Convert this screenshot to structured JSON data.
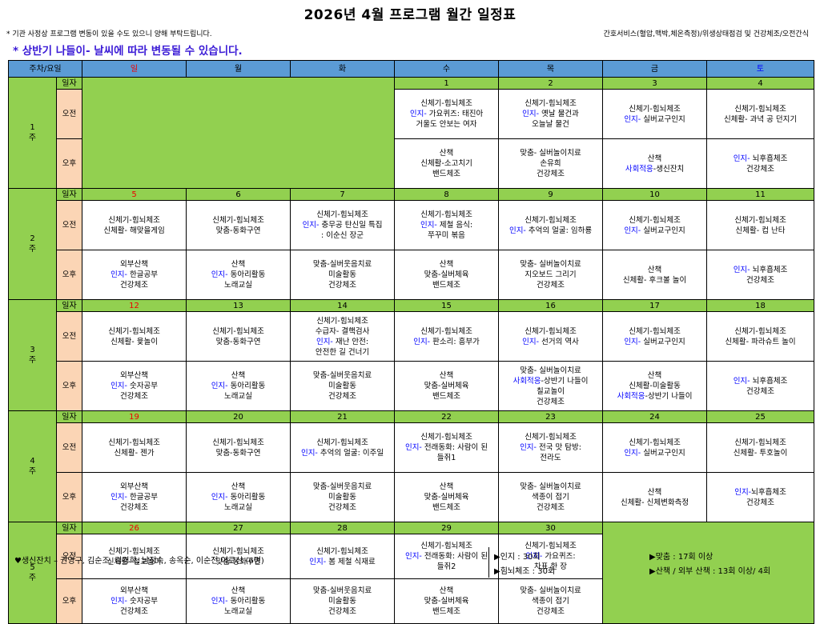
{
  "title": "2026년 4월 프로그램 월간 일정표",
  "note_left": "* 기관 사정상 프로그램 변동이 있을 수도 있으니 양해 부탁드립니다.",
  "note_right": "간호서비스(혈압,맥박,체온측정)/위생상태점검 및 건강체조/오전간식",
  "weather_note": "* 상반기 나들이- 날씨에 따라 변동될 수 있습니다.",
  "header": {
    "week_day": "주차/요일",
    "days": [
      "일",
      "월",
      "화",
      "수",
      "목",
      "금",
      "토"
    ]
  },
  "row_labels": {
    "date": "일자",
    "am": "오전",
    "pm": "오후"
  },
  "weeks": [
    {
      "label": "1\n주",
      "dates": [
        "",
        "",
        "",
        "1",
        "2",
        "3",
        "4"
      ],
      "am": [
        null,
        null,
        null,
        [
          [
            "신체기-힘뇌체조"
          ],
          [
            [
              "인지-",
              "b"
            ],
            [
              "  가요퀴즈: 태진아",
              ""
            ]
          ],
          [
            "거울도 안보는 여자"
          ]
        ],
        [
          [
            "신체기-힘뇌체조"
          ],
          [
            [
              "인지-",
              "b"
            ],
            [
              "  옛날 물건과",
              ""
            ]
          ],
          [
            "오늘날 물건"
          ]
        ],
        [
          [
            "신체기-힘뇌체조"
          ],
          [
            [
              "인지-",
              "b"
            ],
            [
              "  실버교구인지",
              ""
            ]
          ]
        ],
        [
          [
            "신체기-힘뇌체조"
          ],
          [
            "신체활- 과녁 공 던지기"
          ]
        ]
      ],
      "pm": [
        null,
        null,
        null,
        [
          [
            "산책"
          ],
          [
            "신체활-소고치기"
          ],
          [
            "밴드체조"
          ]
        ],
        [
          [
            "맞춤- 실버놀이치료"
          ],
          [
            "손유희"
          ],
          [
            "건강체조"
          ]
        ],
        [
          [
            "산책"
          ],
          [
            [
              "사회적응",
              "b"
            ],
            [
              "-생신잔치",
              ""
            ]
          ]
        ],
        [
          [
            [
              "인지-",
              "b"
            ],
            [
              "  뇌후흡체조",
              ""
            ]
          ],
          [
            "건강체조"
          ]
        ]
      ]
    },
    {
      "label": "2\n주",
      "dates": [
        "5",
        "6",
        "7",
        "8",
        "9",
        "10",
        "11"
      ],
      "am": [
        [
          [
            "신체기-힘뇌체조"
          ],
          [
            "신체활- 해맞을게임"
          ]
        ],
        [
          [
            "신체기-힘뇌체조"
          ],
          [
            "맞춤-동화구연"
          ]
        ],
        [
          [
            "신체기-힘뇌체조"
          ],
          [
            [
              "인지-",
              "b"
            ],
            [
              "  충무공 탄신일 특집",
              ""
            ]
          ],
          [
            ":  이순신 장군"
          ]
        ],
        [
          [
            "신체기-힘뇌체조"
          ],
          [
            [
              "인지-",
              "b"
            ],
            [
              "  제철 음식:",
              ""
            ]
          ],
          [
            "쭈꾸미 볶음"
          ]
        ],
        [
          [
            "신체기-힘뇌체조"
          ],
          [
            [
              "인지-",
              "b"
            ],
            [
              "  추억의 얼굴: 임하룡",
              ""
            ]
          ]
        ],
        [
          [
            "신체기-힘뇌체조"
          ],
          [
            [
              "인지-",
              "b"
            ],
            [
              "  실버교구인지",
              ""
            ]
          ]
        ],
        [
          [
            "신체기-힘뇌체조"
          ],
          [
            "신체활- 컵 난타"
          ]
        ]
      ],
      "pm": [
        [
          [
            "외부산책"
          ],
          [
            [
              "인지-",
              "b"
            ],
            [
              "  한글공부",
              ""
            ]
          ],
          [
            "건강체조"
          ]
        ],
        [
          [
            "산책"
          ],
          [
            [
              "인지-",
              "b"
            ],
            [
              "  동아리활동",
              ""
            ]
          ],
          [
            "노래교실"
          ]
        ],
        [
          [
            "맞춤-실버웃음치료"
          ],
          [
            "미술활동"
          ],
          [
            "건강체조"
          ]
        ],
        [
          [
            "산책"
          ],
          [
            "맞춤-실버체육"
          ],
          [
            "밴드체조"
          ]
        ],
        [
          [
            "맞춤- 실버놀이치료"
          ],
          [
            "지오보드 그리기"
          ],
          [
            "건강체조"
          ]
        ],
        [
          [
            "산책"
          ],
          [
            "신체활- 후크볼 놀이"
          ]
        ],
        [
          [
            [
              "인지-",
              "b"
            ],
            [
              "  뇌후흡체조",
              ""
            ]
          ],
          [
            "건강체조"
          ]
        ]
      ]
    },
    {
      "label": "3\n주",
      "dates": [
        "12",
        "13",
        "14",
        "15",
        "16",
        "17",
        "18"
      ],
      "am": [
        [
          [
            "신체기-힘뇌체조"
          ],
          [
            "신체활- 윷놀이"
          ]
        ],
        [
          [
            "신체기-힘뇌체조"
          ],
          [
            "맞춤-동화구연"
          ]
        ],
        [
          [
            "신체기-힘뇌체조"
          ],
          [
            "수급자- 결핵검사"
          ],
          [
            [
              "인지-",
              "b"
            ],
            [
              "  재난 안전:",
              ""
            ]
          ],
          [
            "안전한 길 건너기"
          ]
        ],
        [
          [
            "신체기-힘뇌체조"
          ],
          [
            [
              "인지-",
              "b"
            ],
            [
              "  판소리: 흥부가",
              ""
            ]
          ]
        ],
        [
          [
            "신체기-힘뇌체조"
          ],
          [
            [
              "인지-",
              "b"
            ],
            [
              "  선거의 역사",
              ""
            ]
          ]
        ],
        [
          [
            "신체기-힘뇌체조"
          ],
          [
            [
              "인지-",
              "b"
            ],
            [
              "  실버교구인지",
              ""
            ]
          ]
        ],
        [
          [
            "신체기-힘뇌체조"
          ],
          [
            "신체활- 파라슈트 놀이"
          ]
        ]
      ],
      "pm": [
        [
          [
            "외부산책"
          ],
          [
            [
              "인지-",
              "b"
            ],
            [
              "  숫자공부",
              ""
            ]
          ],
          [
            "건강체조"
          ]
        ],
        [
          [
            "산책"
          ],
          [
            [
              "인지-",
              "b"
            ],
            [
              "  동아리활동",
              ""
            ]
          ],
          [
            "노래교실"
          ]
        ],
        [
          [
            "맞춤-실버웃음치료"
          ],
          [
            "미술활동"
          ],
          [
            "건강체조"
          ]
        ],
        [
          [
            "산책"
          ],
          [
            "맞춤-실버체육"
          ],
          [
            "밴드체조"
          ]
        ],
        [
          [
            "맞춤- 실버놀이치료"
          ],
          [
            [
              "사회적응",
              "b"
            ],
            [
              "-상반기 나들이",
              ""
            ]
          ],
          [
            "칠교놀이"
          ],
          [
            "건강체조"
          ]
        ],
        [
          [
            "산책"
          ],
          [
            "신체활-미술활동"
          ],
          [
            [
              "사회적응",
              "b"
            ],
            [
              "-상반기 나들이",
              ""
            ]
          ]
        ],
        [
          [
            [
              "인지-",
              "b"
            ],
            [
              "  뇌후흡체조",
              ""
            ]
          ],
          [
            "건강체조"
          ]
        ]
      ]
    },
    {
      "label": "4\n주",
      "dates": [
        "19",
        "20",
        "21",
        "22",
        "23",
        "24",
        "25"
      ],
      "am": [
        [
          [
            "신체기-힘뇌체조"
          ],
          [
            "신체활- 젠가"
          ]
        ],
        [
          [
            "신체기-힘뇌체조"
          ],
          [
            "맞춤-동화구연"
          ]
        ],
        [
          [
            "신체기-힘뇌체조"
          ],
          [
            [
              "인지-",
              "b"
            ],
            [
              "  추억의 얼굴: 이주일",
              ""
            ]
          ]
        ],
        [
          [
            "신체기-힘뇌체조"
          ],
          [
            [
              "인지-",
              "b"
            ],
            [
              "  전래동화: 사람이 된",
              ""
            ]
          ],
          [
            "들쥐1"
          ]
        ],
        [
          [
            "신체기-힘뇌체조"
          ],
          [
            [
              "인지-",
              "b"
            ],
            [
              "  전국 맛 탐방:",
              ""
            ]
          ],
          [
            "전라도"
          ]
        ],
        [
          [
            "신체기-힘뇌체조"
          ],
          [
            [
              "인지-",
              "b"
            ],
            [
              "  실버교구인지",
              ""
            ]
          ]
        ],
        [
          [
            "신체기-힘뇌체조"
          ],
          [
            "신체활- 투호놀이"
          ]
        ]
      ],
      "pm": [
        [
          [
            "외부산책"
          ],
          [
            [
              "인지-",
              "b"
            ],
            [
              "  한글공부",
              ""
            ]
          ],
          [
            "건강체조"
          ]
        ],
        [
          [
            "산책"
          ],
          [
            [
              "인지-",
              "b"
            ],
            [
              "  동아리활동",
              ""
            ]
          ],
          [
            "노래교실"
          ]
        ],
        [
          [
            "맞춤-실버웃음치료"
          ],
          [
            "미술활동"
          ],
          [
            "건강체조"
          ]
        ],
        [
          [
            "산책"
          ],
          [
            "맞춤-실버체육"
          ],
          [
            "밴드체조"
          ]
        ],
        [
          [
            "맞춤- 실버놀이치료"
          ],
          [
            "색종이 접기"
          ],
          [
            "건강체조"
          ]
        ],
        [
          [
            "산책"
          ],
          [
            "신체활- 신체변화측정"
          ]
        ],
        [
          [
            [
              "인지-",
              "b"
            ],
            [
              "뇌후흡체조",
              ""
            ]
          ],
          [
            "건강체조"
          ]
        ]
      ]
    },
    {
      "label": "5\n주",
      "dates": [
        "26",
        "27",
        "28",
        "29",
        "30"
      ],
      "am": [
        [
          [
            "신체기-힘뇌체조"
          ],
          [
            "신체활- 철교놀이"
          ]
        ],
        [
          [
            "신체기-힘뇌체조"
          ],
          [
            "맞춤-동화구연"
          ]
        ],
        [
          [
            "신체기-힘뇌체조"
          ],
          [
            [
              "인지-",
              "b"
            ],
            [
              "  봄 제철 식재료",
              ""
            ]
          ]
        ],
        [
          [
            "신체기-힘뇌체조"
          ],
          [
            [
              "인지-",
              "b"
            ],
            [
              "  전래동화: 사람이 된",
              ""
            ]
          ],
          [
            "들쥐2"
          ]
        ],
        [
          [
            "신체기-힘뇌체조"
          ],
          [
            [
              "인지-",
              "b"
            ],
            [
              "  가요퀴즈:",
              ""
            ]
          ],
          [
            "차표 한 장"
          ]
        ]
      ],
      "pm": [
        [
          [
            "외부산책"
          ],
          [
            [
              "인지-",
              "b"
            ],
            [
              "  숫자공부",
              ""
            ]
          ],
          [
            "건강체조"
          ]
        ],
        [
          [
            "산책"
          ],
          [
            [
              "인지-",
              "b"
            ],
            [
              "  동아리활동",
              ""
            ]
          ],
          [
            "노래교실"
          ]
        ],
        [
          [
            "맞춤-실버웃음치료"
          ],
          [
            "미술활동"
          ],
          [
            "건강체조"
          ]
        ],
        [
          [
            "산책"
          ],
          [
            "맞춤-실버체육"
          ],
          [
            "밴드체조"
          ]
        ],
        [
          [
            "맞춤- 실버놀이치료"
          ],
          [
            "색종이 접기"
          ],
          [
            "건강체조"
          ]
        ]
      ]
    }
  ],
  "footer": {
    "birthday": "♥생신잔치 –  권영구, 김순조, 김경희, 남정숙, 송옥순, 이순전 어르신 (6명)",
    "stat1": "▶인지 : 30회",
    "stat2": "▶힘뇌체조 : 30회",
    "stat3": "▶맞춤 : 17회 이상",
    "stat4": "▶산책 / 외부 산책 : 13회 이상/ 4회"
  },
  "colors": {
    "header_blue": "#5b9bd5",
    "date_green": "#92d050",
    "label_peach": "#fbd5b5",
    "sunday_red": "#ee0000",
    "saturday_blue": "#0000ff",
    "category_blue": "#0000ff"
  }
}
